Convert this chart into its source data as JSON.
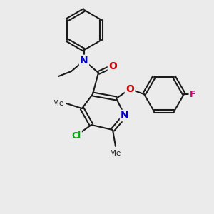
{
  "bg_color": "#ebebeb",
  "bond_color": "#1a1a1a",
  "bond_width": 1.5,
  "atom_colors": {
    "N": "#0000cc",
    "O": "#cc0000",
    "F": "#cc0077",
    "Cl": "#00aa00"
  },
  "font_size": 9,
  "font_size_small": 8
}
